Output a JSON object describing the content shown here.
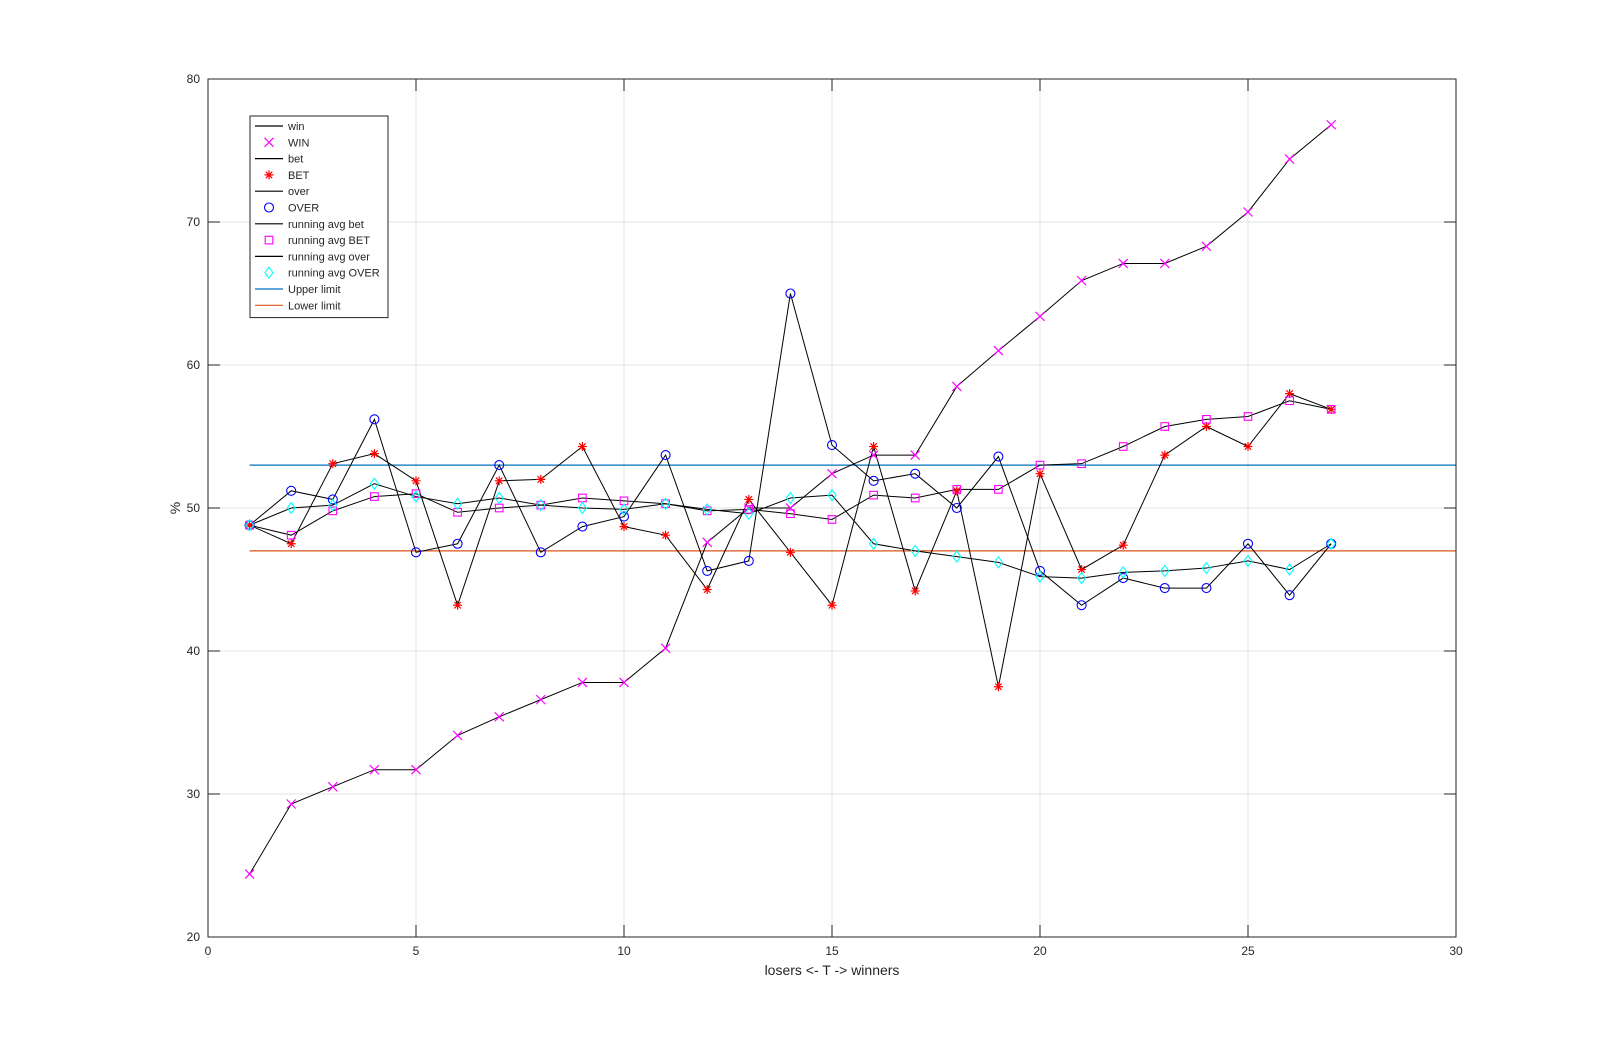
{
  "chart_data": {
    "type": "line",
    "title": "",
    "xlabel": "losers <- T -> winners",
    "ylabel": "%",
    "xlim": [
      0,
      30
    ],
    "ylim": [
      20,
      80
    ],
    "xticks": [
      0,
      5,
      10,
      15,
      20,
      25,
      30
    ],
    "yticks": [
      20,
      30,
      40,
      50,
      60,
      70,
      80
    ],
    "grid": true,
    "legend_position": "top-left",
    "x": [
      1,
      2,
      3,
      4,
      5,
      6,
      7,
      8,
      9,
      10,
      11,
      12,
      13,
      14,
      15,
      16,
      17,
      18,
      19,
      20,
      21,
      22,
      23,
      24,
      25,
      26,
      27
    ],
    "series": [
      {
        "name": "win",
        "style": "line",
        "color": "#000000",
        "values": [
          24.4,
          29.3,
          30.5,
          31.7,
          31.7,
          34.1,
          35.4,
          36.6,
          37.8,
          37.8,
          40.2,
          47.6,
          50.0,
          50.0,
          52.4,
          53.7,
          53.7,
          58.5,
          61.0,
          63.4,
          65.9,
          67.1,
          67.1,
          68.3,
          70.7,
          74.4,
          76.8
        ]
      },
      {
        "name": "WIN",
        "style": "marker",
        "marker": "x",
        "color": "#ff00ff",
        "values": [
          24.4,
          29.3,
          30.5,
          31.7,
          31.7,
          34.1,
          35.4,
          36.6,
          37.8,
          37.8,
          40.2,
          47.6,
          50.0,
          50.0,
          52.4,
          53.7,
          53.7,
          58.5,
          61.0,
          63.4,
          65.9,
          67.1,
          67.1,
          68.3,
          70.7,
          74.4,
          76.8
        ]
      },
      {
        "name": "bet",
        "style": "line",
        "color": "#000000",
        "values": [
          48.8,
          47.5,
          53.1,
          53.8,
          51.9,
          43.2,
          51.9,
          52.0,
          54.3,
          48.7,
          48.1,
          44.3,
          50.6,
          46.9,
          43.2,
          54.3,
          44.2,
          51.2,
          37.5,
          52.4,
          45.7,
          47.4,
          53.7,
          55.7,
          54.3,
          58.0,
          56.9
        ]
      },
      {
        "name": "BET",
        "style": "marker",
        "marker": "asterisk",
        "color": "#ff0000",
        "values": [
          48.8,
          47.5,
          53.1,
          53.8,
          51.9,
          43.2,
          51.9,
          52.0,
          54.3,
          48.7,
          48.1,
          44.3,
          50.6,
          46.9,
          43.2,
          54.3,
          44.2,
          51.2,
          37.5,
          52.4,
          45.7,
          47.4,
          53.7,
          55.7,
          54.3,
          58.0,
          56.9
        ]
      },
      {
        "name": "over",
        "style": "line",
        "color": "#000000",
        "values": [
          48.8,
          51.2,
          50.6,
          56.2,
          46.9,
          47.5,
          53.0,
          46.9,
          48.7,
          49.4,
          53.7,
          45.6,
          46.3,
          65.0,
          54.4,
          51.9,
          52.4,
          50.0,
          53.6,
          45.6,
          43.2,
          45.1,
          44.4,
          44.4,
          47.5,
          43.9,
          47.5
        ]
      },
      {
        "name": "OVER",
        "style": "marker",
        "marker": "circle",
        "color": "#0000ff",
        "values": [
          48.8,
          51.2,
          50.6,
          56.2,
          46.9,
          47.5,
          53.0,
          46.9,
          48.7,
          49.4,
          53.7,
          45.6,
          46.3,
          65.0,
          54.4,
          51.9,
          52.4,
          50.0,
          53.6,
          45.6,
          43.2,
          45.1,
          44.4,
          44.4,
          47.5,
          43.9,
          47.5
        ]
      },
      {
        "name": "running avg bet",
        "style": "line",
        "color": "#000000",
        "values": [
          48.8,
          48.1,
          49.8,
          50.8,
          51.0,
          49.7,
          50.0,
          50.2,
          50.7,
          50.5,
          50.3,
          49.8,
          49.9,
          49.6,
          49.2,
          50.9,
          50.7,
          51.3,
          51.3,
          53.0,
          53.1,
          54.3,
          55.7,
          56.2,
          56.4,
          57.5,
          56.9
        ]
      },
      {
        "name": "running avg BET",
        "style": "marker",
        "marker": "square",
        "color": "#ff00ff",
        "values": [
          48.8,
          48.1,
          49.8,
          50.8,
          51.0,
          49.7,
          50.0,
          50.2,
          50.7,
          50.5,
          50.3,
          49.8,
          49.9,
          49.6,
          49.2,
          50.9,
          50.7,
          51.3,
          51.3,
          53.0,
          53.1,
          54.3,
          55.7,
          56.2,
          56.4,
          57.5,
          56.9
        ]
      },
      {
        "name": "running avg over",
        "style": "line",
        "color": "#000000",
        "values": [
          48.8,
          50.0,
          50.2,
          51.7,
          50.8,
          50.3,
          50.7,
          50.2,
          50.0,
          49.9,
          50.3,
          49.9,
          49.6,
          50.7,
          50.9,
          47.5,
          47.0,
          46.6,
          46.2,
          45.2,
          45.1,
          45.5,
          45.6,
          45.8,
          46.3,
          45.7,
          47.5
        ]
      },
      {
        "name": "running avg OVER",
        "style": "marker",
        "marker": "diamond",
        "color": "#00ffff",
        "values": [
          48.8,
          50.0,
          50.2,
          51.7,
          50.8,
          50.3,
          50.7,
          50.2,
          50.0,
          49.9,
          50.3,
          49.9,
          49.6,
          50.7,
          50.9,
          47.5,
          47.0,
          46.6,
          46.2,
          45.2,
          45.1,
          45.5,
          45.6,
          45.8,
          46.3,
          45.7,
          47.5
        ]
      },
      {
        "name": "Upper limit",
        "style": "hline",
        "color": "#0072bd",
        "x_range": [
          1,
          30
        ],
        "y": 53.0
      },
      {
        "name": "Lower limit",
        "style": "hline",
        "color": "#d95319",
        "x_range": [
          1,
          30
        ],
        "y": 47.0
      }
    ]
  }
}
